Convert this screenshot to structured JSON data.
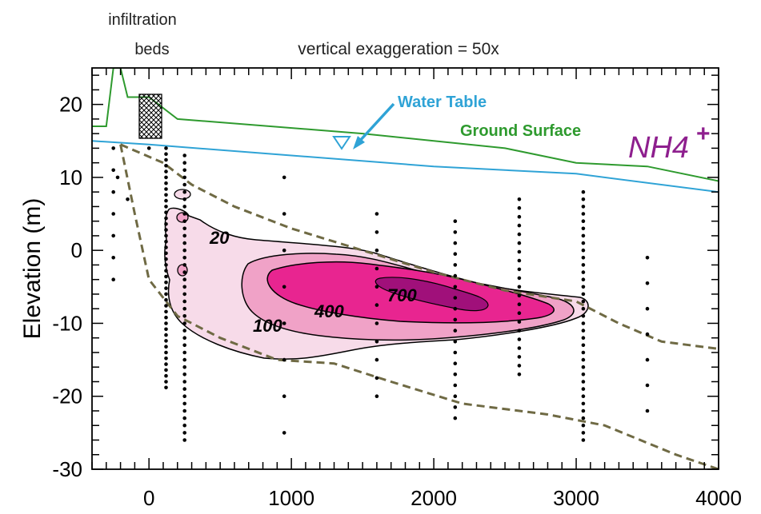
{
  "chart_data": {
    "type": "contour",
    "title": "",
    "ylabel": "Elevation (m)",
    "xlabel": "",
    "xlim": [
      -400,
      4000
    ],
    "ylim": [
      -30,
      25
    ],
    "xticks": [
      "0",
      "1000",
      "2000",
      "3000",
      "4000"
    ],
    "yticks": [
      "20",
      "10",
      "0",
      "-10",
      "-20",
      "-30"
    ],
    "annotations": {
      "infiltration_beds": [
        "infiltration",
        "beds"
      ],
      "exaggeration": "vertical exaggeration = 50x",
      "water_table": "Water Table",
      "ground_surface": "Ground Surface",
      "species": "NH4",
      "species_charge": "+"
    },
    "contour_levels": [
      {
        "label": "20",
        "color": "#f7dbe9"
      },
      {
        "label": "100",
        "color": "#f0a2c7"
      },
      {
        "label": "400",
        "color": "#e82590"
      },
      {
        "label": "700",
        "color": "#a0107a"
      }
    ],
    "lines": {
      "ground_surface": {
        "color": "#2e9a2e",
        "points": [
          [
            -400,
            17
          ],
          [
            -300,
            17
          ],
          [
            -250,
            25
          ],
          [
            -200,
            25
          ],
          [
            -150,
            21
          ],
          [
            0,
            21
          ],
          [
            200,
            18
          ],
          [
            1500,
            16
          ],
          [
            2500,
            14
          ],
          [
            3000,
            12
          ],
          [
            3500,
            11.5
          ],
          [
            4000,
            9.5
          ]
        ]
      },
      "water_table": {
        "color": "#2fa3d6",
        "points": [
          [
            -400,
            15
          ],
          [
            0,
            14.5
          ],
          [
            1000,
            13
          ],
          [
            2000,
            11.5
          ],
          [
            3000,
            10.5
          ],
          [
            4000,
            8
          ]
        ]
      },
      "sampling_boundary_upper": {
        "color": "#6f6a44",
        "points": [
          [
            -200,
            14.5
          ],
          [
            100,
            12
          ],
          [
            300,
            9
          ],
          [
            600,
            6
          ],
          [
            1000,
            3
          ],
          [
            1500,
            0
          ],
          [
            2000,
            -3
          ],
          [
            2500,
            -5.5
          ],
          [
            3000,
            -7
          ],
          [
            3300,
            -10
          ],
          [
            3600,
            -12.5
          ],
          [
            4000,
            -13.5
          ]
        ]
      },
      "sampling_boundary_lower": {
        "color": "#6f6a44",
        "points": [
          [
            -200,
            14.5
          ],
          [
            -100,
            5
          ],
          [
            0,
            -4
          ],
          [
            200,
            -9
          ],
          [
            500,
            -12
          ],
          [
            900,
            -15
          ],
          [
            1300,
            -15.5
          ],
          [
            1700,
            -18
          ],
          [
            2200,
            -21
          ],
          [
            2800,
            -22.5
          ],
          [
            3200,
            -24
          ],
          [
            3700,
            -28
          ],
          [
            4000,
            -30
          ]
        ]
      }
    }
  }
}
